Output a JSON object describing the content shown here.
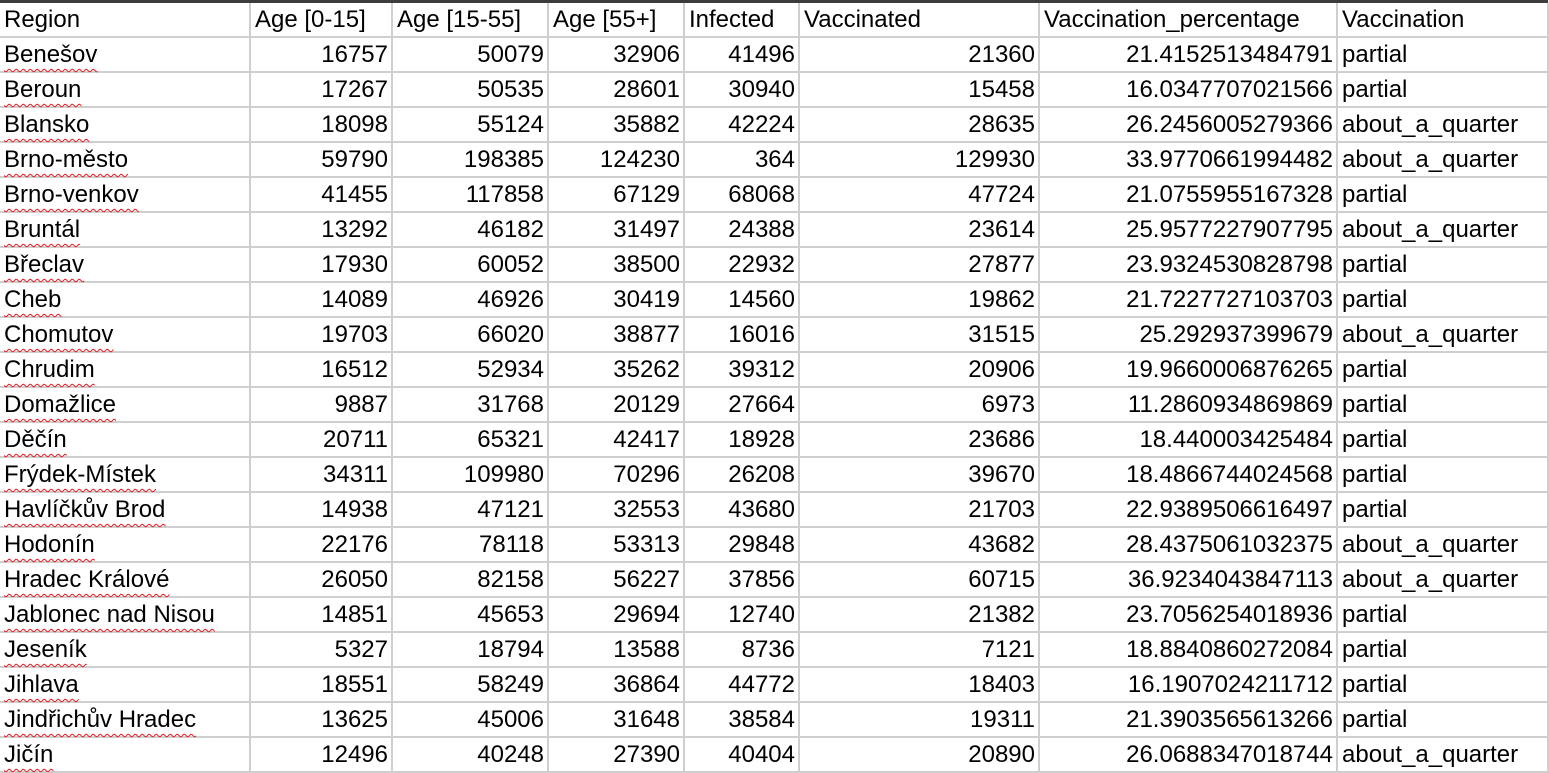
{
  "sheet": {
    "headers": [
      "Region",
      "Age [0-15]",
      "Age [15-55]",
      "Age [55+]",
      "Infected",
      "Vaccinated",
      "Vaccination_percentage",
      "Vaccination"
    ],
    "rows": [
      [
        "Benešov",
        "16757",
        "50079",
        "32906",
        "41496",
        "21360",
        "21.4152513484791",
        "partial"
      ],
      [
        "Beroun",
        "17267",
        "50535",
        "28601",
        "30940",
        "15458",
        "16.0347707021566",
        "partial"
      ],
      [
        "Blansko",
        "18098",
        "55124",
        "35882",
        "42224",
        "28635",
        "26.2456005279366",
        "about_a_quarter"
      ],
      [
        "Brno-město",
        "59790",
        "198385",
        "124230",
        "364",
        "129930",
        "33.9770661994482",
        "about_a_quarter"
      ],
      [
        "Brno-venkov",
        "41455",
        "117858",
        "67129",
        "68068",
        "47724",
        "21.0755955167328",
        "partial"
      ],
      [
        "Bruntál",
        "13292",
        "46182",
        "31497",
        "24388",
        "23614",
        "25.9577227907795",
        "about_a_quarter"
      ],
      [
        "Břeclav",
        "17930",
        "60052",
        "38500",
        "22932",
        "27877",
        "23.9324530828798",
        "partial"
      ],
      [
        "Cheb",
        "14089",
        "46926",
        "30419",
        "14560",
        "19862",
        "21.7227727103703",
        "partial"
      ],
      [
        "Chomutov",
        "19703",
        "66020",
        "38877",
        "16016",
        "31515",
        "25.292937399679",
        "about_a_quarter"
      ],
      [
        "Chrudim",
        "16512",
        "52934",
        "35262",
        "39312",
        "20906",
        "19.9660006876265",
        "partial"
      ],
      [
        "Domažlice",
        "9887",
        "31768",
        "20129",
        "27664",
        "6973",
        "11.2860934869869",
        "partial"
      ],
      [
        "Děčín",
        "20711",
        "65321",
        "42417",
        "18928",
        "23686",
        "18.440003425484",
        "partial"
      ],
      [
        "Frýdek-Místek",
        "34311",
        "109980",
        "70296",
        "26208",
        "39670",
        "18.4866744024568",
        "partial"
      ],
      [
        "Havlíčkův Brod",
        "14938",
        "47121",
        "32553",
        "43680",
        "21703",
        "22.9389506616497",
        "partial"
      ],
      [
        "Hodonín",
        "22176",
        "78118",
        "53313",
        "29848",
        "43682",
        "28.4375061032375",
        "about_a_quarter"
      ],
      [
        "Hradec Králové",
        "26050",
        "82158",
        "56227",
        "37856",
        "60715",
        "36.9234043847113",
        "about_a_quarter"
      ],
      [
        "Jablonec nad Nisou",
        "14851",
        "45653",
        "29694",
        "12740",
        "21382",
        "23.7056254018936",
        "partial"
      ],
      [
        "Jeseník",
        "5327",
        "18794",
        "13588",
        "8736",
        "7121",
        "18.8840860272084",
        "partial"
      ],
      [
        "Jihlava",
        "18551",
        "58249",
        "36864",
        "44772",
        "18403",
        "16.1907024211712",
        "partial"
      ],
      [
        "Jindřichův Hradec",
        "13625",
        "45006",
        "31648",
        "38584",
        "19311",
        "21.3903565613266",
        "partial"
      ],
      [
        "Jičín",
        "12496",
        "40248",
        "27390",
        "40404",
        "20890",
        "26.0688347018744",
        "about_a_quarter"
      ]
    ]
  }
}
